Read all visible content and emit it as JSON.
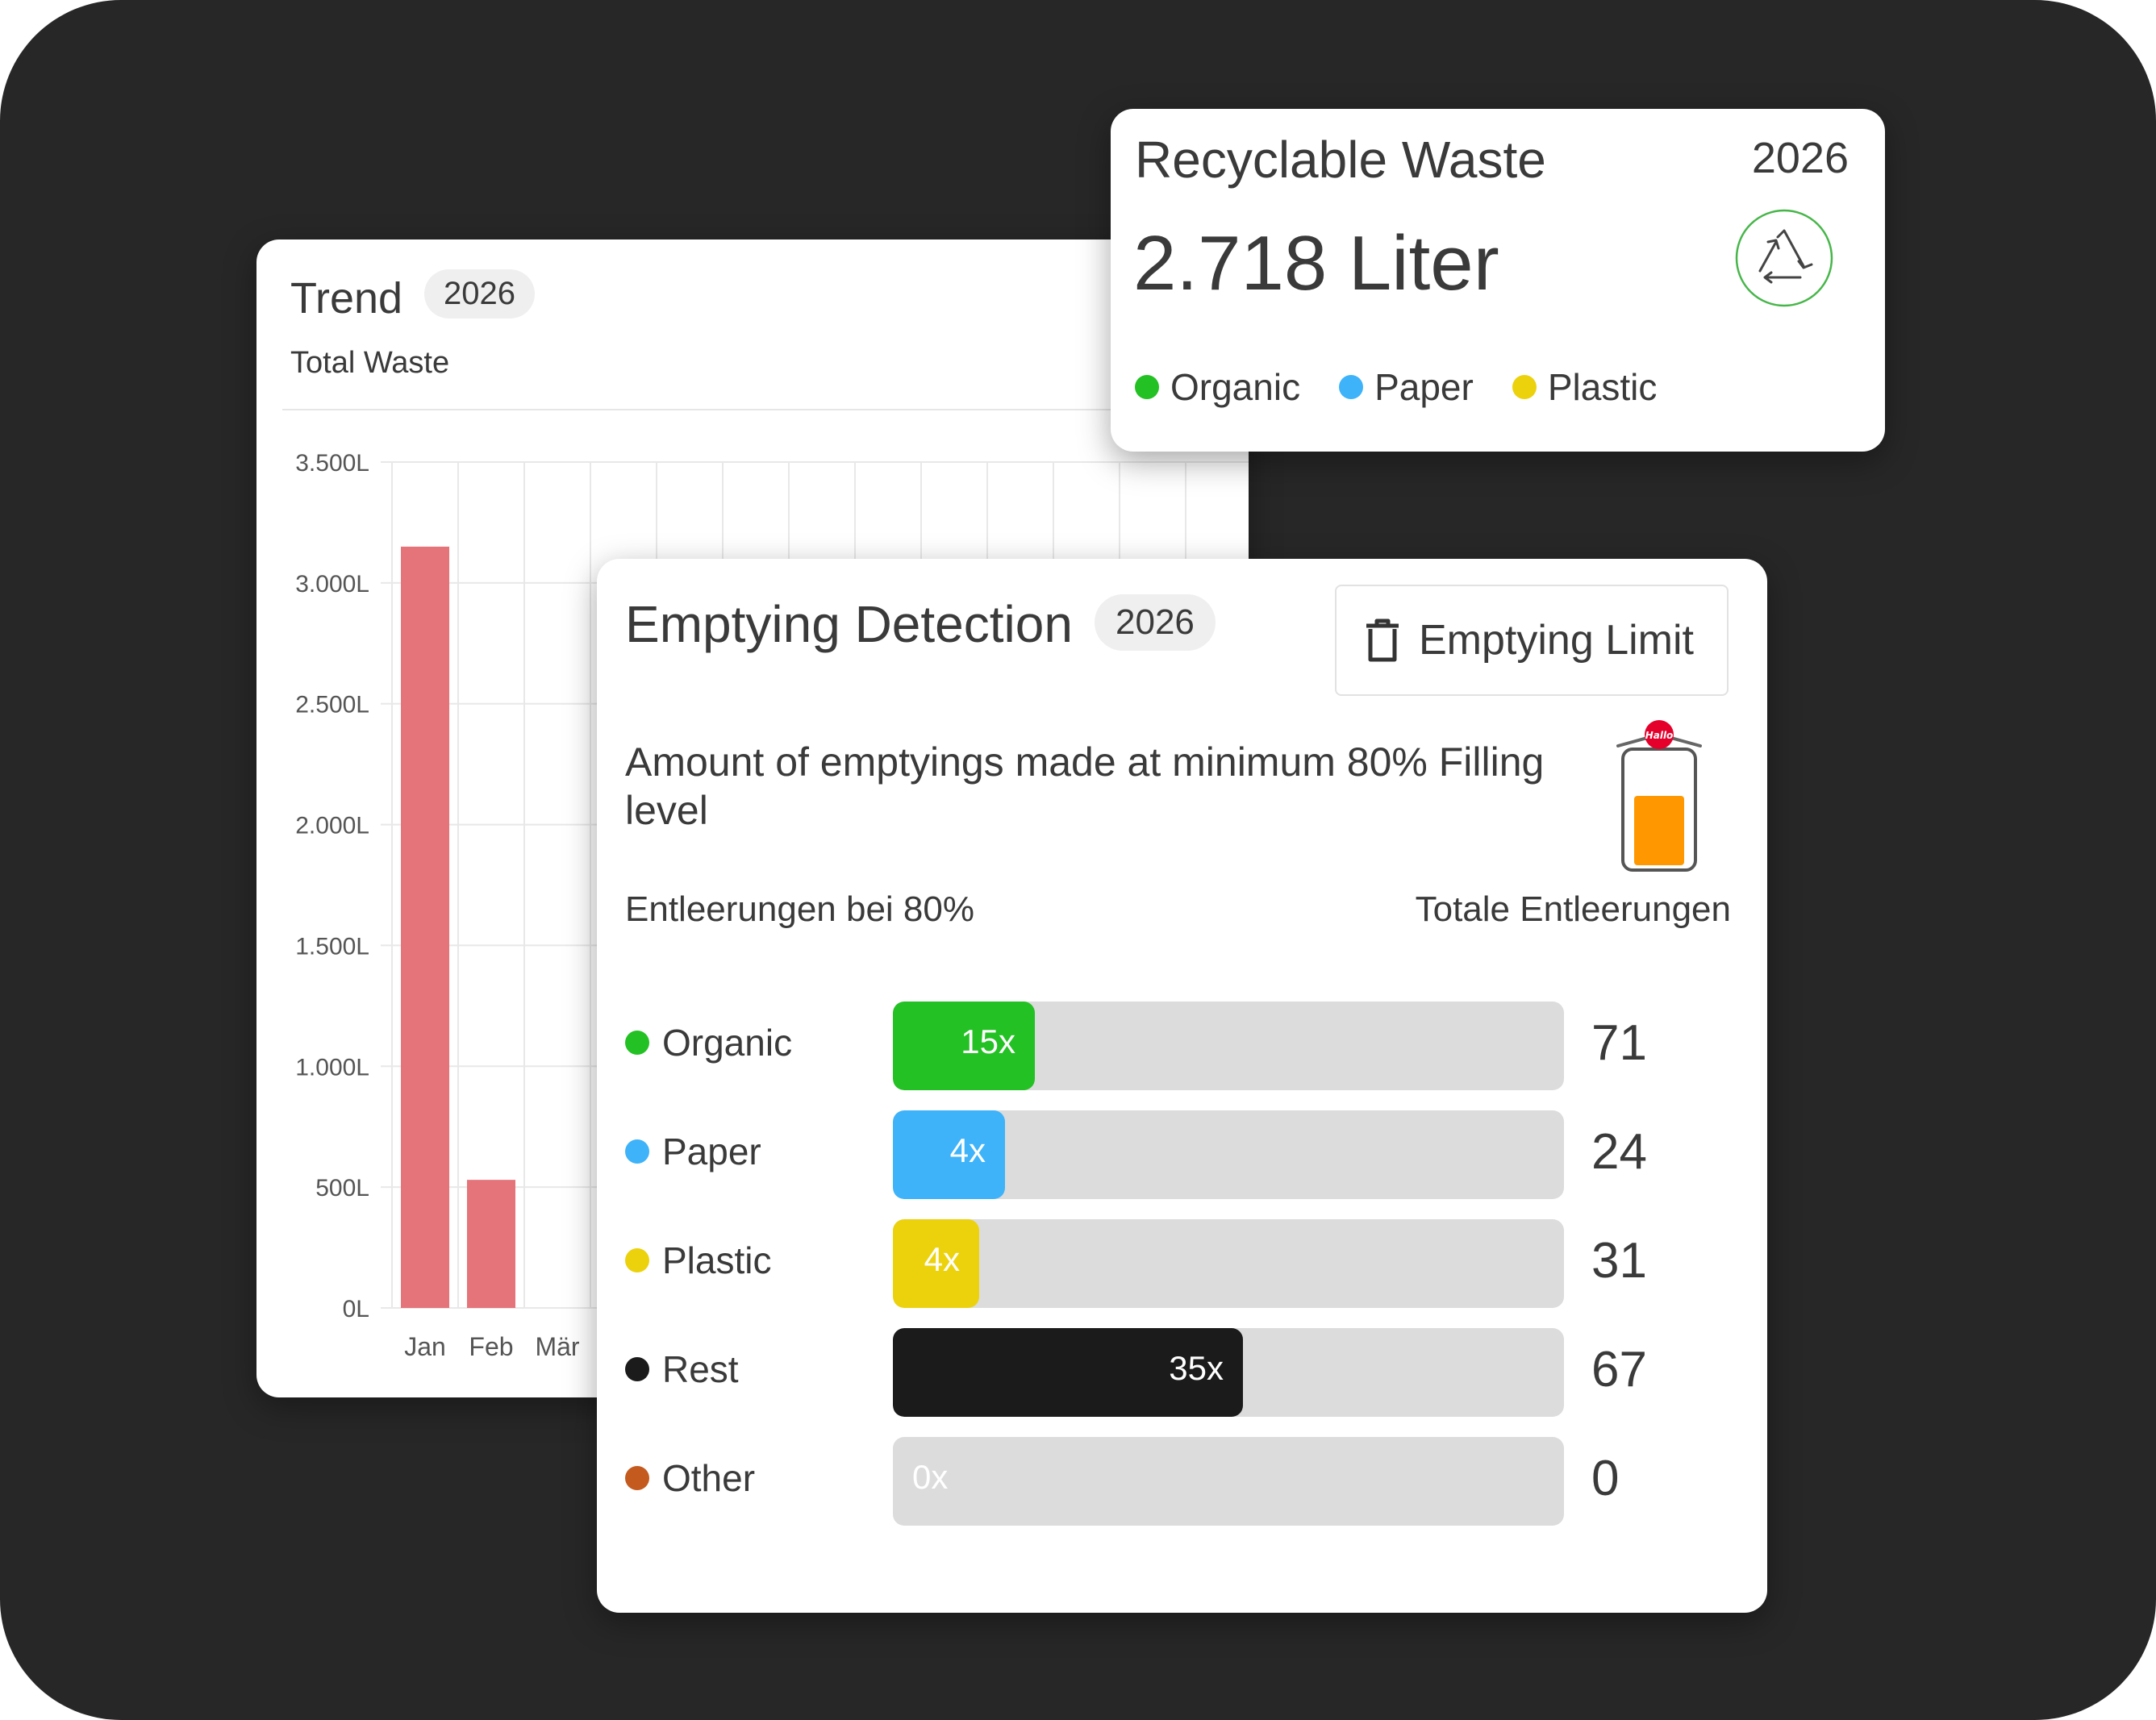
{
  "trend": {
    "title": "Trend",
    "year": "2026",
    "subtitle": "Total Waste"
  },
  "chart_data": {
    "type": "bar",
    "categories": [
      "Jan",
      "Feb",
      "Mär"
    ],
    "values": [
      3150,
      530,
      null
    ],
    "ylim": [
      0,
      3500
    ],
    "y_ticks": [
      "0L",
      "500L",
      "1.000L",
      "1.500L",
      "2.000L",
      "2.500L",
      "3.000L",
      "3.500L"
    ],
    "grid": true,
    "bar_color": "#e5737a"
  },
  "recyclable": {
    "title": "Recyclable Waste",
    "year": "2026",
    "value": "2.718 Liter",
    "icon": "recycle-icon",
    "legend": [
      {
        "label": "Organic",
        "color": "#23c124"
      },
      {
        "label": "Paper",
        "color": "#3eb3f9"
      },
      {
        "label": "Plastic",
        "color": "#ecd20c"
      }
    ]
  },
  "emptying": {
    "title": "Emptying Detection",
    "year": "2026",
    "limit_button": "Emptying Limit",
    "description": "Amount of emptyings made at minimum 80% Filling level",
    "label_left": "Entleerungen bei 80%",
    "label_right": "Totale Entleerungen",
    "bin_badge": "Hallo",
    "bin_fill_color": "#ff9800",
    "rows": [
      {
        "label": "Organic",
        "color": "#23c124",
        "count": "15x",
        "total": "71",
        "fraction": 0.211
      },
      {
        "label": "Paper",
        "color": "#3eb3f9",
        "count": "4x",
        "total": "24",
        "fraction": 0.167
      },
      {
        "label": "Plastic",
        "color": "#ecd20c",
        "count": "4x",
        "total": "31",
        "fraction": 0.129
      },
      {
        "label": "Rest",
        "color": "#1b1b1b",
        "count": "35x",
        "total": "67",
        "fraction": 0.522
      },
      {
        "label": "Other",
        "color": "#c45a1e",
        "count": "0x",
        "total": "0",
        "fraction": 0
      }
    ]
  }
}
